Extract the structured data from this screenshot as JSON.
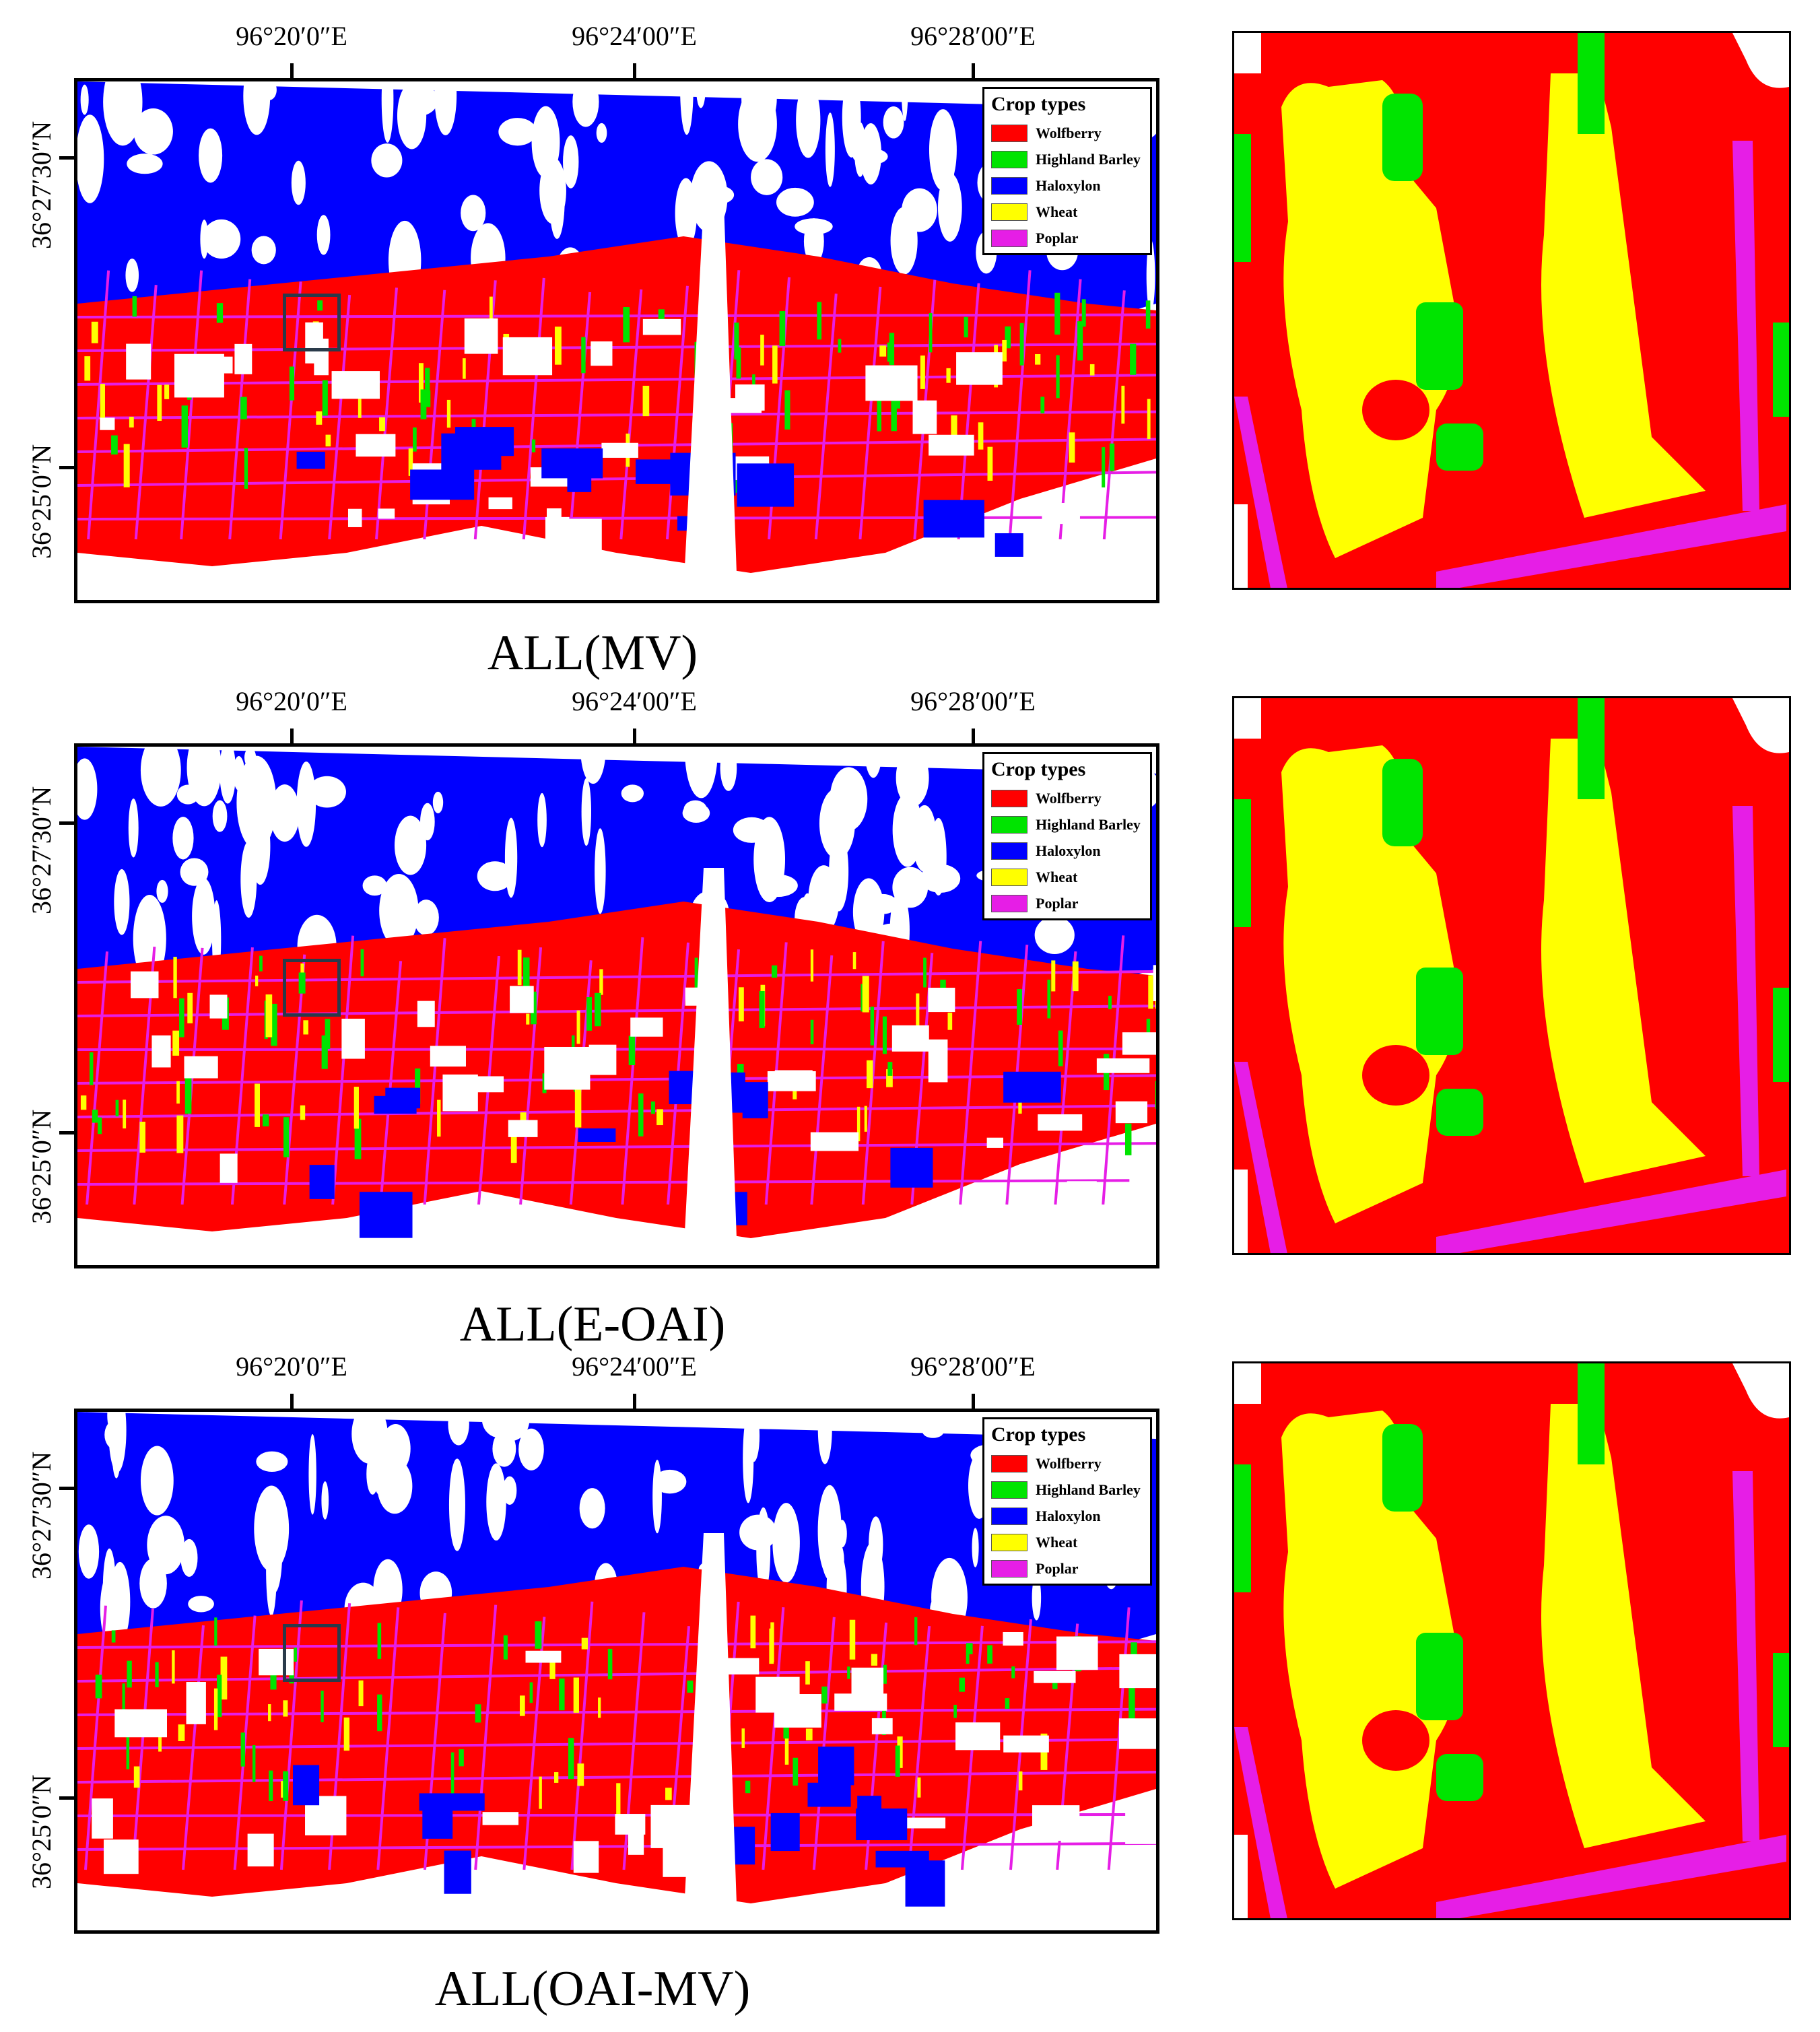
{
  "colors": {
    "wolfberry": "#ff0000",
    "highland_barley": "#00e400",
    "haloxylon": "#0000ff",
    "wheat": "#ffff00",
    "poplar": "#e61ee6",
    "background": "#ffffff"
  },
  "longitude_labels": [
    "96°20′0″E",
    "96°24′00″E",
    "96°28′00″E"
  ],
  "latitude_labels": [
    "36°27′30″N",
    "36°25′0″N"
  ],
  "legend": {
    "title": "Crop types",
    "items": [
      {
        "label": "Wolfberry",
        "color": "#ff0000"
      },
      {
        "label": "Highland Barley",
        "color": "#00e400"
      },
      {
        "label": "Haloxylon",
        "color": "#0000ff"
      },
      {
        "label": "Wheat",
        "color": "#ffff00"
      },
      {
        "label": "Poplar",
        "color": "#e61ee6"
      }
    ]
  },
  "panels": [
    {
      "caption": "ALL(MV)"
    },
    {
      "caption": "ALL(E-OAI)"
    },
    {
      "caption": "ALL(OAI-MV)"
    }
  ]
}
